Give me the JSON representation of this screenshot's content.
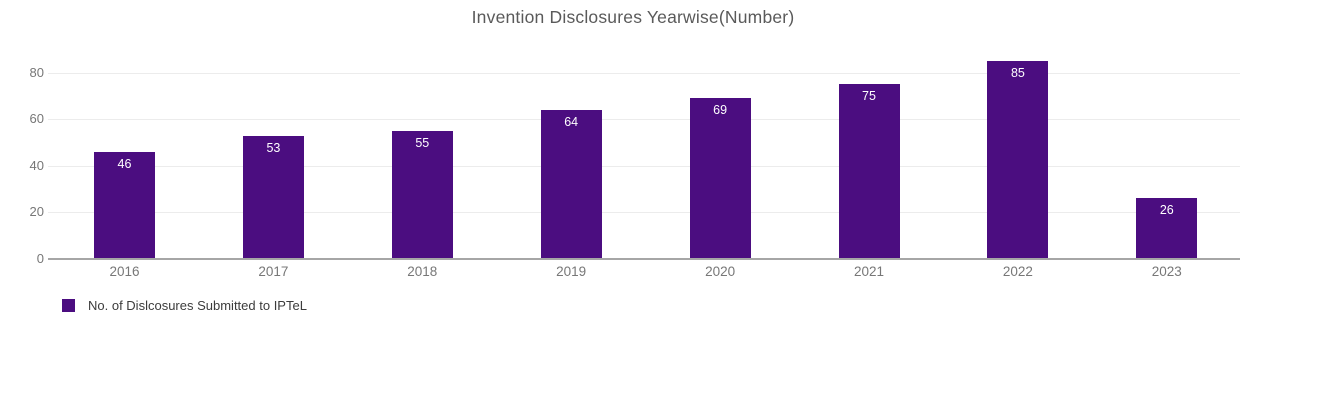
{
  "chart_data": {
    "type": "bar",
    "title": "Invention Disclosures Yearwise(Number)",
    "categories": [
      "2016",
      "2017",
      "2018",
      "2019",
      "2020",
      "2021",
      "2022",
      "2023"
    ],
    "values": [
      46,
      53,
      55,
      64,
      69,
      75,
      85,
      26
    ],
    "xlabel": "",
    "ylabel": "",
    "ylim": [
      0,
      89
    ],
    "yticks": [
      0,
      20,
      40,
      60,
      80
    ],
    "grid": true,
    "data_labels": "inside-top, white",
    "legend": {
      "position": "bottom-left",
      "entries": [
        "No. of Dislcosures Submitted to IPTeL"
      ]
    },
    "colors": {
      "bar": "#4b0d80",
      "bar_label": "#ffffff",
      "axis_line": "#a6a6a6",
      "gridline": "#ececec",
      "tick_text": "#777777",
      "title_text": "#5a5a5a",
      "legend_text": "#3c3c3c",
      "background": "#ffffff"
    }
  }
}
